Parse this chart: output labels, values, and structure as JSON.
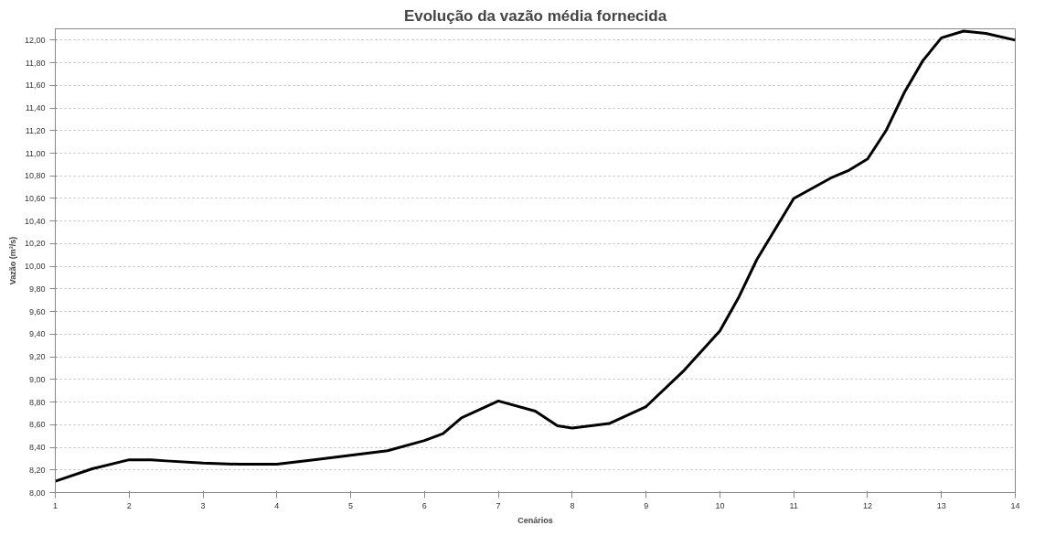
{
  "chart_data": {
    "type": "line",
    "title": "Evolução da vazão média fornecida",
    "xlabel": "Cenários",
    "ylabel": "Vazão (m³/s)",
    "x": [
      1,
      1.5,
      2,
      2.3,
      2.5,
      3,
      3.5,
      4,
      4.5,
      5,
      5.5,
      6,
      6.25,
      6.5,
      7,
      7.5,
      7.8,
      8,
      8.5,
      9,
      9.5,
      10,
      10.25,
      10.5,
      11,
      11.5,
      11.75,
      12,
      12.25,
      12.5,
      12.75,
      13,
      13.3,
      13.6,
      14
    ],
    "series": [
      {
        "color": "#000000",
        "values": [
          8.1,
          8.21,
          8.29,
          8.29,
          8.28,
          8.26,
          8.25,
          8.25,
          8.29,
          8.33,
          8.37,
          8.46,
          8.52,
          8.66,
          8.81,
          8.72,
          8.59,
          8.57,
          8.61,
          8.76,
          9.07,
          9.43,
          9.72,
          10.06,
          10.6,
          10.78,
          10.85,
          10.95,
          11.2,
          11.54,
          11.82,
          12.02,
          12.08,
          12.06,
          12.0
        ]
      }
    ],
    "xlim": [
      1,
      14
    ],
    "xticks": [
      1,
      2,
      3,
      4,
      5,
      6,
      7,
      8,
      9,
      10,
      11,
      12,
      13,
      14
    ],
    "ylim": [
      8,
      12.1
    ],
    "yticks": [
      {
        "value": 8,
        "label": "8,00"
      },
      {
        "value": 8.2,
        "label": "8,20"
      },
      {
        "value": 8.4,
        "label": "8,40"
      },
      {
        "value": 8.6,
        "label": "8,60"
      },
      {
        "value": 8.8,
        "label": "8,80"
      },
      {
        "value": 9,
        "label": "9,00"
      },
      {
        "value": 9.2,
        "label": "9,20"
      },
      {
        "value": 9.4,
        "label": "9,40"
      },
      {
        "value": 9.6,
        "label": "9,60"
      },
      {
        "value": 9.8,
        "label": "9,80"
      },
      {
        "value": 10,
        "label": "10,00"
      },
      {
        "value": 10.2,
        "label": "10,20"
      },
      {
        "value": 10.4,
        "label": "10,40"
      },
      {
        "value": 10.6,
        "label": "10,60"
      },
      {
        "value": 10.8,
        "label": "10,80"
      },
      {
        "value": 11,
        "label": "11,00"
      },
      {
        "value": 11.2,
        "label": "11,20"
      },
      {
        "value": 11.4,
        "label": "11,40"
      },
      {
        "value": 11.6,
        "label": "11,60"
      },
      {
        "value": 11.8,
        "label": "11,80"
      },
      {
        "value": 12,
        "label": "12,00"
      }
    ],
    "grid": "y",
    "line_style": "solid"
  }
}
